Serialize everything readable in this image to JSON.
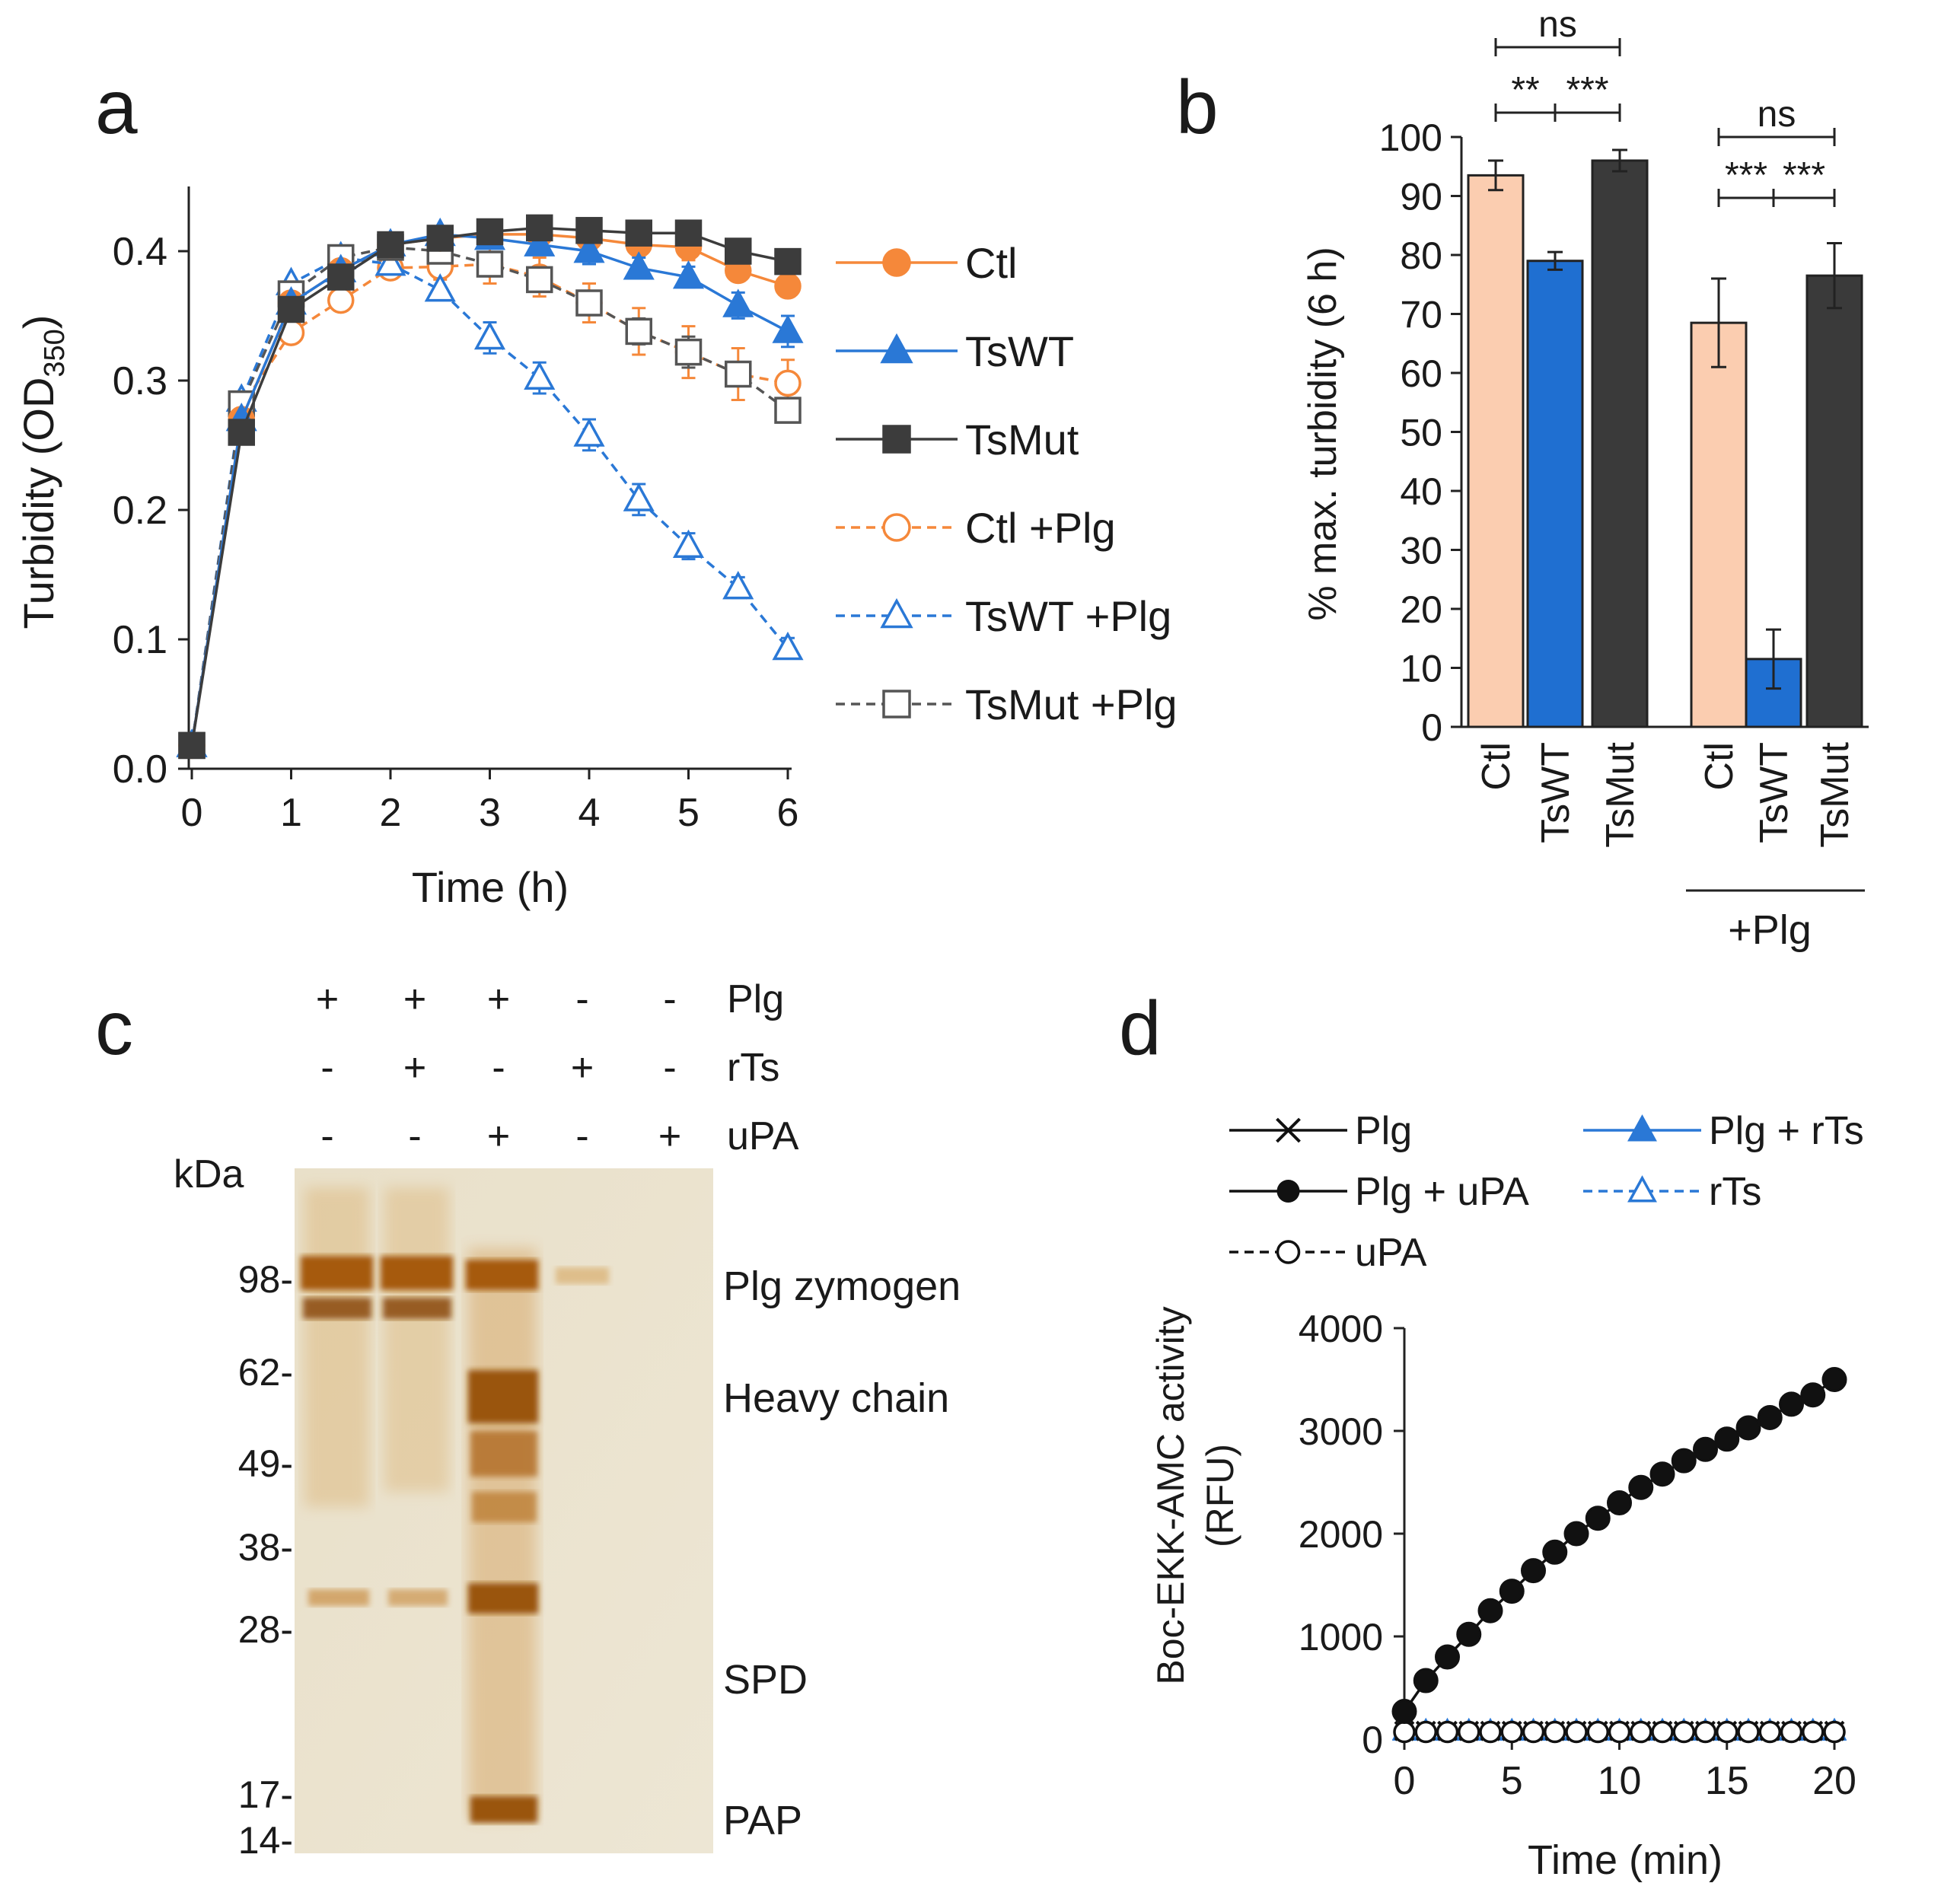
{
  "panels": {
    "a": "a",
    "b": "b",
    "c": "c",
    "d": "d"
  },
  "chart_data": [
    {
      "id": "a",
      "type": "line",
      "title": "",
      "xlabel": "Time (h)",
      "ylabel_main": "Turbidity (OD",
      "ylabel_sub": "350",
      "ylabel_close": ")",
      "xlim": [
        0,
        6
      ],
      "ylim": [
        0.0,
        0.45
      ],
      "xticks": [
        0,
        1,
        2,
        3,
        4,
        5,
        6
      ],
      "xtick_labels": [
        "0",
        "1",
        "2",
        "3",
        "4",
        "5",
        "6"
      ],
      "yticks": [
        0.0,
        0.1,
        0.2,
        0.3,
        0.4
      ],
      "ytick_labels": [
        "0.0",
        "0.1",
        "0.2",
        "0.3",
        "0.4"
      ],
      "x": [
        0,
        0.5,
        1,
        1.5,
        2,
        2.5,
        3,
        3.5,
        4,
        4.5,
        5,
        5.5,
        6
      ],
      "series": [
        {
          "name": "Ctl",
          "color": "#f5883a",
          "marker": "circle",
          "filled": true,
          "dashed": false,
          "values": [
            0.018,
            0.27,
            0.36,
            0.385,
            0.405,
            0.41,
            0.413,
            0.413,
            0.41,
            0.405,
            0.403,
            0.385,
            0.373
          ],
          "errors": [
            0,
            0,
            0,
            0,
            0,
            0,
            0,
            0,
            0,
            0,
            0.01,
            0,
            0.008
          ]
        },
        {
          "name": "TsWT",
          "color": "#2a78d6",
          "marker": "triangle",
          "filled": true,
          "dashed": false,
          "values": [
            0.018,
            0.27,
            0.36,
            0.385,
            0.405,
            0.413,
            0.41,
            0.405,
            0.4,
            0.387,
            0.38,
            0.358,
            0.338
          ],
          "errors": [
            0,
            0,
            0,
            0,
            0,
            0,
            0,
            0.008,
            0.01,
            0.008,
            0.008,
            0.01,
            0.012
          ]
        },
        {
          "name": "TsMut",
          "color": "#3c3c3c",
          "marker": "square",
          "filled": true,
          "dashed": false,
          "values": [
            0.018,
            0.26,
            0.355,
            0.38,
            0.405,
            0.41,
            0.415,
            0.418,
            0.416,
            0.414,
            0.414,
            0.4,
            0.392
          ],
          "errors": [
            0,
            0,
            0,
            0,
            0,
            0,
            0,
            0,
            0,
            0,
            0,
            0,
            0
          ]
        },
        {
          "name": "Ctl +Plg",
          "color": "#f5883a",
          "marker": "circle",
          "filled": false,
          "dashed": true,
          "values": [
            0.018,
            0.28,
            0.337,
            0.362,
            0.387,
            0.388,
            0.39,
            0.38,
            0.36,
            0.338,
            0.322,
            0.305,
            0.298
          ],
          "errors": [
            0,
            0,
            0,
            0,
            0,
            0.01,
            0.015,
            0.015,
            0.015,
            0.018,
            0.02,
            0.02,
            0.018
          ]
        },
        {
          "name": "TsWT +Plg",
          "color": "#2a78d6",
          "marker": "triangle",
          "filled": false,
          "dashed": true,
          "values": [
            0.018,
            0.285,
            0.375,
            0.395,
            0.39,
            0.37,
            0.333,
            0.302,
            0.258,
            0.208,
            0.172,
            0.14,
            0.093
          ],
          "errors": [
            0,
            0,
            0,
            0,
            0,
            0,
            0.012,
            0.012,
            0.012,
            0.012,
            0.01,
            0.008,
            0.008
          ]
        },
        {
          "name": "TsMut +Plg",
          "color": "#555555",
          "marker": "square",
          "filled": false,
          "dashed": true,
          "values": [
            0.018,
            0.282,
            0.367,
            0.395,
            0.403,
            0.4,
            0.39,
            0.378,
            0.36,
            0.338,
            0.322,
            0.305,
            0.277
          ],
          "errors": [
            0,
            0,
            0,
            0,
            0,
            0,
            0,
            0,
            0,
            0.01,
            0.012,
            0,
            0
          ]
        }
      ]
    },
    {
      "id": "b",
      "type": "bar",
      "ylabel": "% max. turbidity (6 h)",
      "ylim": [
        0,
        100
      ],
      "yticks": [
        0,
        10,
        20,
        30,
        40,
        50,
        60,
        70,
        80,
        90,
        100
      ],
      "ytick_labels": [
        "0",
        "10",
        "20",
        "30",
        "40",
        "50",
        "60",
        "70",
        "80",
        "90",
        "100"
      ],
      "categories": [
        "Ctl",
        "TsWT",
        "TsMut",
        "Ctl",
        "TsWT",
        "TsMut"
      ],
      "values": [
        93.5,
        79,
        96,
        68.5,
        11.5,
        76.5
      ],
      "errors": [
        2.5,
        1.5,
        1.8,
        7.5,
        5,
        5.5
      ],
      "colors": [
        "#fbcdb0",
        "#1f6fd1",
        "#3a3a3a",
        "#fbcdb0",
        "#1f6fd1",
        "#3a3a3a"
      ],
      "group_label": "+Plg",
      "significance": [
        {
          "label": "ns",
          "from": 0,
          "to": 2
        },
        {
          "label": "**",
          "from": 0,
          "to": 1
        },
        {
          "label": "***",
          "from": 1,
          "to": 2
        },
        {
          "label": "ns",
          "from": 3,
          "to": 5
        },
        {
          "label": "***",
          "from": 3,
          "to": 4
        },
        {
          "label": "***",
          "from": 4,
          "to": 5
        }
      ]
    },
    {
      "id": "c",
      "type": "gel",
      "rows": [
        {
          "label": "Plg",
          "signs": [
            "+",
            "+",
            "+",
            "-",
            "-"
          ]
        },
        {
          "label": "rTs",
          "signs": [
            "-",
            "+",
            "-",
            "+",
            "-"
          ]
        },
        {
          "label": "uPA",
          "signs": [
            "-",
            "-",
            "+",
            "-",
            "+"
          ]
        }
      ],
      "unit_label": "kDa",
      "markers": [
        "98-",
        "62-",
        "49-",
        "38-",
        "28-",
        "17-",
        "14-"
      ],
      "band_labels": [
        "Plg zymogen",
        "Heavy chain",
        "SPD",
        "PAP"
      ]
    },
    {
      "id": "d",
      "type": "line",
      "xlabel": "Time (min)",
      "ylabel_line1": "Boc-EKK-AMC activity",
      "ylabel_line2": "(RFU)",
      "xlim": [
        0,
        20
      ],
      "ylim": [
        0,
        4000
      ],
      "xticks": [
        0,
        5,
        10,
        15,
        20
      ],
      "xtick_labels": [
        "0",
        "5",
        "10",
        "15",
        "20"
      ],
      "yticks": [
        0,
        1000,
        2000,
        3000,
        4000
      ],
      "ytick_labels": [
        "0",
        "1000",
        "2000",
        "3000",
        "4000"
      ],
      "x": [
        0,
        1,
        2,
        3,
        4,
        5,
        6,
        7,
        8,
        9,
        10,
        11,
        12,
        13,
        14,
        15,
        16,
        17,
        18,
        19,
        20
      ],
      "series": [
        {
          "name": "Plg",
          "color": "#111111",
          "marker": "x",
          "dashed": false,
          "values": [
            80,
            80,
            80,
            80,
            80,
            80,
            80,
            80,
            80,
            80,
            80,
            80,
            80,
            80,
            80,
            80,
            80,
            80,
            80,
            80,
            80
          ]
        },
        {
          "name": "Plg + rTs",
          "color": "#2a78d6",
          "marker": "triangle-filled",
          "dashed": false,
          "values": [
            80,
            80,
            80,
            80,
            80,
            80,
            80,
            80,
            80,
            80,
            80,
            80,
            80,
            80,
            80,
            80,
            80,
            80,
            80,
            80,
            80
          ]
        },
        {
          "name": "rTs",
          "color": "#2a78d6",
          "marker": "triangle-open",
          "dashed": true,
          "values": [
            75,
            75,
            75,
            75,
            75,
            75,
            75,
            75,
            75,
            75,
            75,
            75,
            75,
            75,
            75,
            75,
            75,
            75,
            75,
            75,
            75
          ]
        },
        {
          "name": "uPA",
          "color": "#111111",
          "marker": "circle-open",
          "dashed": true,
          "values": [
            70,
            70,
            70,
            70,
            70,
            70,
            70,
            70,
            70,
            70,
            70,
            70,
            70,
            70,
            70,
            70,
            70,
            70,
            70,
            70,
            70
          ]
        },
        {
          "name": "Plg + uPA",
          "color": "#111111",
          "marker": "circle-filled",
          "dashed": false,
          "values": [
            270,
            570,
            800,
            1020,
            1250,
            1440,
            1640,
            1820,
            2000,
            2150,
            2300,
            2450,
            2580,
            2710,
            2820,
            2920,
            3030,
            3130,
            3260,
            3350,
            3500
          ]
        }
      ]
    }
  ]
}
